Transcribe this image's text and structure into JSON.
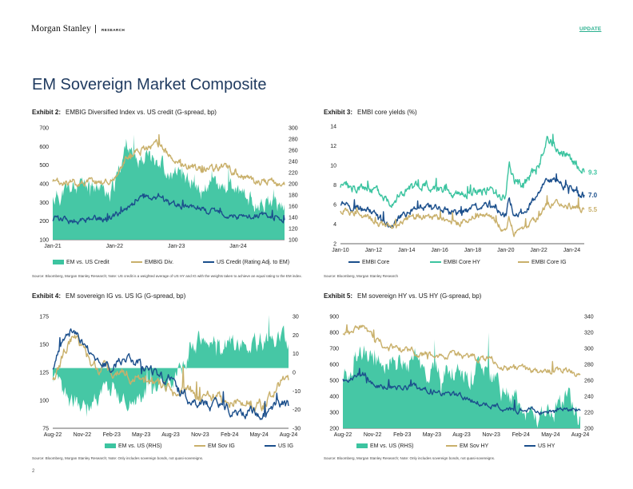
{
  "header": {
    "brand": "Morgan Stanley",
    "separator": "|",
    "section": "RESEARCH",
    "tag": "UPDATE"
  },
  "page_title": "EM Sovereign Market Composite",
  "page_number": "2",
  "colors": {
    "teal": "#3cc4a0",
    "gold": "#c9b06b",
    "navy": "#1b4f8c",
    "title": "#1f3a5f"
  },
  "exhibits": [
    {
      "id": "Exhibit 2:",
      "title": "EMBIG Diversified Index vs. US credit (G-spread, bp)",
      "source": "Source: Bloomberg, Morgan Stanley Research; Note: US credit is a weighted average of US HY and IG with the weights taken to achieve an equal rating to the EM index.",
      "legend": [
        "EM vs. US Credit",
        "EMBIG Div.",
        "US Credit (Rating Adj. to EM)"
      ]
    },
    {
      "id": "Exhibit 3:",
      "title": "EMBI core yields (%)",
      "source": "Source: Bloomberg, Morgan Stanley Research",
      "legend": [
        "EMBI Core",
        "EMBI Core HY",
        "EMBI Core IG"
      ],
      "end_labels": [
        "9.3",
        "7.0",
        "5.5"
      ]
    },
    {
      "id": "Exhibit 4:",
      "title": "EM sovereign IG vs. US IG (G-spread, bp)",
      "source": "Source: Bloomberg, Morgan Stanley Research; Note: Only includes sovereign bonds, not quasi-sovereigns.",
      "legend": [
        "EM vs. US (RHS)",
        "EM Sov IG",
        "US IG"
      ]
    },
    {
      "id": "Exhibit 5:",
      "title": "EM sovereign HY vs. US HY (G-spread, bp)",
      "source": "Source: Bloomberg, Morgan Stanley Research; Note: Only includes sovereign bonds, not quasi-sovereigns.",
      "legend": [
        "EM vs. US (RHS)",
        "EM Sov HY",
        "US HY"
      ]
    }
  ],
  "chart_data": [
    {
      "type": "line",
      "x_ticks": [
        "Jan-21",
        "Jan-22",
        "Jan-23",
        "Jan-24"
      ],
      "y_left": {
        "range": [
          100,
          700
        ],
        "ticks": [
          "700",
          "600",
          "500",
          "400",
          "300",
          "200",
          "100"
        ]
      },
      "y_right": {
        "range": [
          100,
          300
        ],
        "ticks": [
          "300",
          "280",
          "260",
          "240",
          "220",
          "200",
          "180",
          "160",
          "140",
          "120",
          "100"
        ]
      },
      "series": [
        {
          "name": "EM vs. US Credit",
          "style": "area",
          "axis": "left",
          "start": 2021.0,
          "end": 2024.75,
          "anchors": [
            [
              2021.0,
              320
            ],
            [
              2021.3,
              370
            ],
            [
              2021.6,
              380
            ],
            [
              2021.85,
              370
            ],
            [
              2022.0,
              400
            ],
            [
              2022.15,
              560
            ],
            [
              2022.2,
              640
            ],
            [
              2022.3,
              520
            ],
            [
              2022.5,
              560
            ],
            [
              2022.75,
              520
            ],
            [
              2022.9,
              440
            ],
            [
              2023.0,
              440
            ],
            [
              2023.2,
              410
            ],
            [
              2023.5,
              380
            ],
            [
              2023.75,
              390
            ],
            [
              2024.0,
              350
            ],
            [
              2024.3,
              300
            ],
            [
              2024.6,
              290
            ],
            [
              2024.75,
              290
            ]
          ]
        },
        {
          "name": "EMBIG Div.",
          "style": "line",
          "axis": "right",
          "start": 2021.0,
          "end": 2024.75,
          "anchors": [
            [
              2021.0,
              200
            ],
            [
              2021.5,
              203
            ],
            [
              2021.9,
              205
            ],
            [
              2022.05,
              215
            ],
            [
              2022.2,
              250
            ],
            [
              2022.45,
              262
            ],
            [
              2022.75,
              270
            ],
            [
              2022.95,
              240
            ],
            [
              2023.2,
              232
            ],
            [
              2023.5,
              225
            ],
            [
              2023.8,
              230
            ],
            [
              2024.0,
              215
            ],
            [
              2024.3,
              205
            ],
            [
              2024.6,
              202
            ],
            [
              2024.75,
              198
            ]
          ]
        },
        {
          "name": "US Credit (Rating Adj. to EM)",
          "style": "line",
          "axis": "left",
          "start": 2021.0,
          "end": 2024.75,
          "anchors": [
            [
              2021.0,
              210
            ],
            [
              2021.5,
              200
            ],
            [
              2021.9,
              210
            ],
            [
              2022.2,
              270
            ],
            [
              2022.45,
              330
            ],
            [
              2022.75,
              320
            ],
            [
              2022.95,
              280
            ],
            [
              2023.2,
              290
            ],
            [
              2023.5,
              260
            ],
            [
              2023.8,
              240
            ],
            [
              2024.0,
              220
            ],
            [
              2024.3,
              230
            ],
            [
              2024.6,
              215
            ],
            [
              2024.75,
              205
            ]
          ]
        }
      ]
    },
    {
      "type": "line",
      "x_ticks": [
        "Jan-10",
        "Jan-12",
        "Jan-14",
        "Jan-16",
        "Jan-18",
        "Jan-20",
        "Jan-22",
        "Jan-24"
      ],
      "y_left": {
        "range": [
          2,
          14
        ],
        "ticks": [
          "14",
          "12",
          "10",
          "8",
          "6",
          "4",
          "2"
        ]
      },
      "series": [
        {
          "name": "EMBI Core HY",
          "style": "line",
          "start": 2010.0,
          "end": 2024.75,
          "anchors": [
            [
              2010,
              8.0
            ],
            [
              2011,
              7.5
            ],
            [
              2012,
              7.6
            ],
            [
              2013,
              6.4
            ],
            [
              2014,
              7.4
            ],
            [
              2015,
              8.0
            ],
            [
              2016,
              7.8
            ],
            [
              2017,
              7.0
            ],
            [
              2018,
              7.4
            ],
            [
              2019,
              7.6
            ],
            [
              2020,
              6.7
            ],
            [
              2020.2,
              10.5
            ],
            [
              2020.5,
              8.5
            ],
            [
              2021,
              7.8
            ],
            [
              2022,
              10.0
            ],
            [
              2022.5,
              12.6
            ],
            [
              2023,
              11.8
            ],
            [
              2024,
              10.6
            ],
            [
              2024.75,
              9.3
            ]
          ]
        },
        {
          "name": "EMBI Core",
          "style": "line",
          "start": 2010.0,
          "end": 2024.75,
          "anchors": [
            [
              2010,
              6.0
            ],
            [
              2011,
              5.6
            ],
            [
              2012,
              5.2
            ],
            [
              2013,
              3.8
            ],
            [
              2014,
              5.2
            ],
            [
              2015,
              5.8
            ],
            [
              2016,
              5.6
            ],
            [
              2017,
              5.0
            ],
            [
              2018,
              5.6
            ],
            [
              2019,
              6.2
            ],
            [
              2020,
              4.9
            ],
            [
              2020.2,
              6.6
            ],
            [
              2020.5,
              5.1
            ],
            [
              2021,
              5.0
            ],
            [
              2022,
              7.2
            ],
            [
              2022.5,
              8.6
            ],
            [
              2023,
              8.2
            ],
            [
              2024,
              7.6
            ],
            [
              2024.75,
              7.0
            ]
          ]
        },
        {
          "name": "EMBI Core IG",
          "style": "line",
          "start": 2010.0,
          "end": 2024.75,
          "anchors": [
            [
              2010,
              5.3
            ],
            [
              2011,
              5.0
            ],
            [
              2012,
              4.5
            ],
            [
              2013,
              3.5
            ],
            [
              2014,
              4.6
            ],
            [
              2015,
              4.8
            ],
            [
              2016,
              4.5
            ],
            [
              2017,
              4.0
            ],
            [
              2018,
              4.7
            ],
            [
              2019,
              4.8
            ],
            [
              2020,
              3.4
            ],
            [
              2020.2,
              4.6
            ],
            [
              2020.5,
              3.1
            ],
            [
              2021,
              3.3
            ],
            [
              2022,
              4.8
            ],
            [
              2022.5,
              6.0
            ],
            [
              2023,
              6.0
            ],
            [
              2024,
              5.8
            ],
            [
              2024.75,
              5.5
            ]
          ]
        }
      ]
    },
    {
      "type": "line",
      "x_ticks": [
        "Aug-22",
        "Nov-22",
        "Feb-23",
        "May-23",
        "Aug-23",
        "Nov-23",
        "Feb-24",
        "May-24",
        "Aug-24"
      ],
      "y_left": {
        "range": [
          75,
          175
        ],
        "ticks": [
          "175",
          "150",
          "125",
          "100",
          "75"
        ]
      },
      "y_right": {
        "range": [
          -35,
          30
        ],
        "ticks": [
          "30",
          "20",
          "10",
          "0",
          "-10",
          "-20",
          "-30"
        ]
      },
      "series": [
        {
          "name": "EM vs. US (RHS)",
          "style": "area",
          "axis": "right",
          "baseline": 0,
          "start": 0,
          "end": 24,
          "anchors": [
            [
              0,
              -10
            ],
            [
              1.5,
              -18
            ],
            [
              3,
              -22
            ],
            [
              4.5,
              -15
            ],
            [
              6,
              -12
            ],
            [
              7.5,
              -18
            ],
            [
              9,
              -15
            ],
            [
              10.5,
              -10
            ],
            [
              12,
              -5
            ],
            [
              13.5,
              0
            ],
            [
              14,
              14
            ],
            [
              16,
              15
            ],
            [
              18,
              16
            ],
            [
              20,
              14
            ],
            [
              22,
              16
            ],
            [
              24,
              14
            ]
          ]
        },
        {
          "name": "EM Sov IG",
          "style": "line",
          "axis": "left",
          "start": 0,
          "end": 24,
          "anchors": [
            [
              0,
              115
            ],
            [
              2,
              160
            ],
            [
              3,
              148
            ],
            [
              4.5,
              128
            ],
            [
              6,
              125
            ],
            [
              7.5,
              122
            ],
            [
              9,
              118
            ],
            [
              10.5,
              115
            ],
            [
              12,
              110
            ],
            [
              14,
              108
            ],
            [
              16,
              103
            ],
            [
              18,
              100
            ],
            [
              20,
              98
            ],
            [
              21.5,
              96
            ],
            [
              23,
              115
            ],
            [
              24,
              118
            ]
          ]
        },
        {
          "name": "US IG",
          "style": "line",
          "axis": "left",
          "start": 0,
          "end": 24,
          "anchors": [
            [
              0,
              130
            ],
            [
              2,
              165
            ],
            [
              3,
              150
            ],
            [
              4.5,
              135
            ],
            [
              6,
              130
            ],
            [
              7.5,
              137
            ],
            [
              9,
              128
            ],
            [
              10.5,
              122
            ],
            [
              12,
              115
            ],
            [
              14,
              100
            ],
            [
              16,
              95
            ],
            [
              18,
              93
            ],
            [
              20,
              90
            ],
            [
              21.5,
              88
            ],
            [
              23,
              95
            ],
            [
              24,
              95
            ]
          ]
        }
      ]
    },
    {
      "type": "line",
      "x_ticks": [
        "Aug-22",
        "Nov-22",
        "Feb-23",
        "May-23",
        "Aug-23",
        "Nov-23",
        "Feb-24",
        "May-24",
        "Aug-24"
      ],
      "y_left": {
        "range": [
          200,
          900
        ],
        "ticks": [
          "900",
          "800",
          "700",
          "600",
          "500",
          "400",
          "300",
          "200"
        ]
      },
      "y_right": {
        "range": [
          200,
          340
        ],
        "ticks": [
          "340",
          "320",
          "300",
          "280",
          "260",
          "240",
          "220",
          "200"
        ]
      },
      "series": [
        {
          "name": "EM vs. US (RHS)",
          "style": "area",
          "axis": "right",
          "start": 0,
          "end": 24,
          "anchors": [
            [
              0,
              260
            ],
            [
              2,
              300
            ],
            [
              3,
              280
            ],
            [
              4.5,
              290
            ],
            [
              6,
              285
            ],
            [
              7.5,
              280
            ],
            [
              9,
              270
            ],
            [
              10.5,
              275
            ],
            [
              12,
              265
            ],
            [
              13.5,
              270
            ],
            [
              15,
              262
            ],
            [
              17,
              240
            ],
            [
              19,
              222
            ],
            [
              21,
              222
            ],
            [
              22.5,
              235
            ],
            [
              24,
              215
            ]
          ]
        },
        {
          "name": "EM Sov HY",
          "style": "line",
          "axis": "left",
          "start": 0,
          "end": 24,
          "anchors": [
            [
              0,
              790
            ],
            [
              2,
              840
            ],
            [
              3,
              790
            ],
            [
              4.5,
              700
            ],
            [
              6,
              690
            ],
            [
              7.5,
              670
            ],
            [
              9,
              660
            ],
            [
              10.5,
              660
            ],
            [
              12,
              650
            ],
            [
              13.5,
              640
            ],
            [
              15,
              620
            ],
            [
              17,
              580
            ],
            [
              19,
              560
            ],
            [
              21,
              550
            ],
            [
              22.5,
              570
            ],
            [
              24,
              540
            ]
          ]
        },
        {
          "name": "US HY",
          "style": "line",
          "axis": "left",
          "start": 0,
          "end": 24,
          "anchors": [
            [
              0,
              500
            ],
            [
              2,
              540
            ],
            [
              3,
              480
            ],
            [
              4.5,
              460
            ],
            [
              6,
              450
            ],
            [
              7.5,
              460
            ],
            [
              9,
              430
            ],
            [
              10.5,
              410
            ],
            [
              12,
              400
            ],
            [
              13.5,
              360
            ],
            [
              15,
              340
            ],
            [
              17,
              320
            ],
            [
              19,
              310
            ],
            [
              21,
              300
            ],
            [
              22.5,
              320
            ],
            [
              24,
              310
            ]
          ]
        }
      ]
    }
  ]
}
